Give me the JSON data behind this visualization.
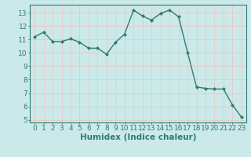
{
  "x": [
    0,
    1,
    2,
    3,
    4,
    5,
    6,
    7,
    8,
    9,
    10,
    11,
    12,
    13,
    14,
    15,
    16,
    17,
    18,
    19,
    20,
    21,
    22,
    23
  ],
  "y": [
    11.2,
    11.55,
    10.85,
    10.85,
    11.05,
    10.8,
    10.35,
    10.35,
    9.9,
    10.8,
    11.4,
    13.2,
    12.75,
    12.45,
    12.95,
    13.2,
    12.7,
    10.05,
    7.45,
    7.35,
    7.3,
    7.3,
    6.1,
    5.2
  ],
  "line_color": "#2e7d6e",
  "marker": "D",
  "marker_size": 2,
  "line_width": 1.0,
  "xlabel": "Humidex (Indice chaleur)",
  "xlim": [
    -0.5,
    23.5
  ],
  "ylim": [
    4.8,
    13.6
  ],
  "yticks": [
    5,
    6,
    7,
    8,
    9,
    10,
    11,
    12,
    13
  ],
  "xticks": [
    0,
    1,
    2,
    3,
    4,
    5,
    6,
    7,
    8,
    9,
    10,
    11,
    12,
    13,
    14,
    15,
    16,
    17,
    18,
    19,
    20,
    21,
    22,
    23
  ],
  "xtick_labels": [
    "0",
    "1",
    "2",
    "3",
    "4",
    "5",
    "6",
    "7",
    "8",
    "9",
    "10",
    "11",
    "12",
    "13",
    "14",
    "15",
    "16",
    "17",
    "18",
    "19",
    "20",
    "21",
    "22",
    "23"
  ],
  "bg_color": "#cce9e9",
  "grid_color": "#e8c8c8",
  "axis_color": "#2e7d6e",
  "tick_fontsize": 6.5,
  "xlabel_fontsize": 7.5
}
